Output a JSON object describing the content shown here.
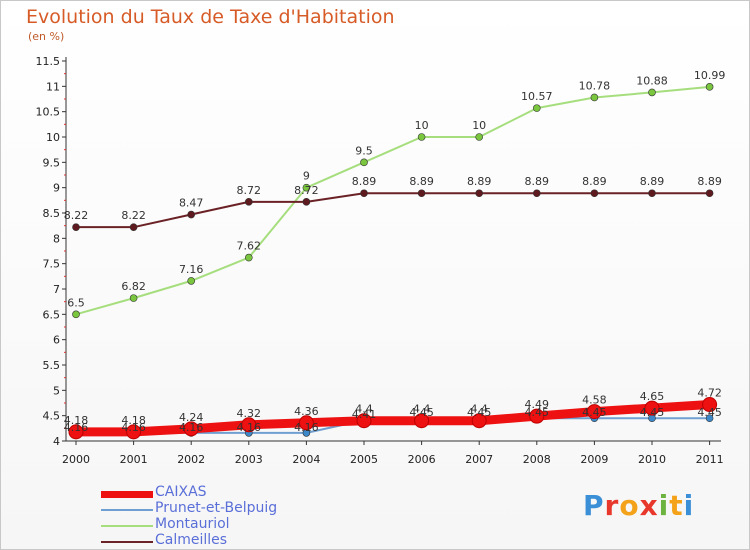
{
  "header": {
    "title": "Evolution du Taux de Taxe d'Habitation",
    "subtitle": "(en %)"
  },
  "logo": {
    "text": "Proxiti",
    "letters": [
      "P",
      "r",
      "o",
      "x",
      "i",
      "t",
      "i"
    ],
    "colors": [
      "#3a8fd6",
      "#e8382c",
      "#f3a21a",
      "#e8382c",
      "#6cb33f",
      "#f3a21a",
      "#3a8fd6"
    ]
  },
  "chart_data": {
    "type": "line",
    "title": "Evolution du Taux de Taxe d'Habitation",
    "subtitle": "(en %)",
    "categories": [
      "2000",
      "2001",
      "2002",
      "2003",
      "2004",
      "2005",
      "2006",
      "2007",
      "2008",
      "2009",
      "2010",
      "2011"
    ],
    "ylim": [
      4,
      11.5
    ],
    "yticks": [
      "4",
      "4.5",
      "5",
      "5.5",
      "6",
      "6.5",
      "7",
      "7.5",
      "8",
      "8.5",
      "9",
      "9.5",
      "10",
      "10.5",
      "11",
      "11.5"
    ],
    "grid": false,
    "legend_position": "bottom-left",
    "series": [
      {
        "name": "CAIXAS",
        "color": "#ee1111",
        "marker_color": "#ee1111",
        "values": [
          4.18,
          4.18,
          4.24,
          4.32,
          4.36,
          4.4,
          4.4,
          4.4,
          4.49,
          4.58,
          4.65,
          4.72
        ],
        "labels": [
          "4.18",
          "4.18",
          "4.24",
          "4.32",
          "4.36",
          "4.4",
          "4.4",
          "4.4",
          "4.49",
          "4.58",
          "4.65",
          "4.72"
        ]
      },
      {
        "name": "Prunet-et-Belpuig",
        "color": "#6f9fd0",
        "marker_color": "#3d88c8",
        "values": [
          4.16,
          4.16,
          4.16,
          4.16,
          4.16,
          4.41,
          4.45,
          4.45,
          4.45,
          4.45,
          4.45,
          4.45
        ],
        "labels": [
          "4.16",
          "4.16",
          "4.16",
          "4.16",
          "4.16",
          "4.41",
          "4.45",
          "4.45",
          "4.45",
          "4.45",
          "4.45",
          "4.45"
        ]
      },
      {
        "name": "Montauriol",
        "color": "#a6de7e",
        "marker_color": "#7bc63f",
        "values": [
          6.5,
          6.82,
          7.16,
          7.62,
          9,
          9.5,
          10,
          10,
          10.57,
          10.78,
          10.88,
          10.99
        ],
        "labels": [
          "6.5",
          "6.82",
          "7.16",
          "7.62",
          "9",
          "9.5",
          "10",
          "10",
          "10.57",
          "10.78",
          "10.88",
          "10.99"
        ]
      },
      {
        "name": "Calmeilles",
        "color": "#6b2226",
        "marker_color": "#5e1a1e",
        "values": [
          8.22,
          8.22,
          8.47,
          8.72,
          8.72,
          8.89,
          8.89,
          8.89,
          8.89,
          8.89,
          8.89,
          8.89
        ],
        "labels": [
          "8.22",
          "8.22",
          "8.47",
          "8.72",
          "8.72",
          "8.89",
          "8.89",
          "8.89",
          "8.89",
          "8.89",
          "8.89",
          "8.89"
        ]
      }
    ]
  }
}
